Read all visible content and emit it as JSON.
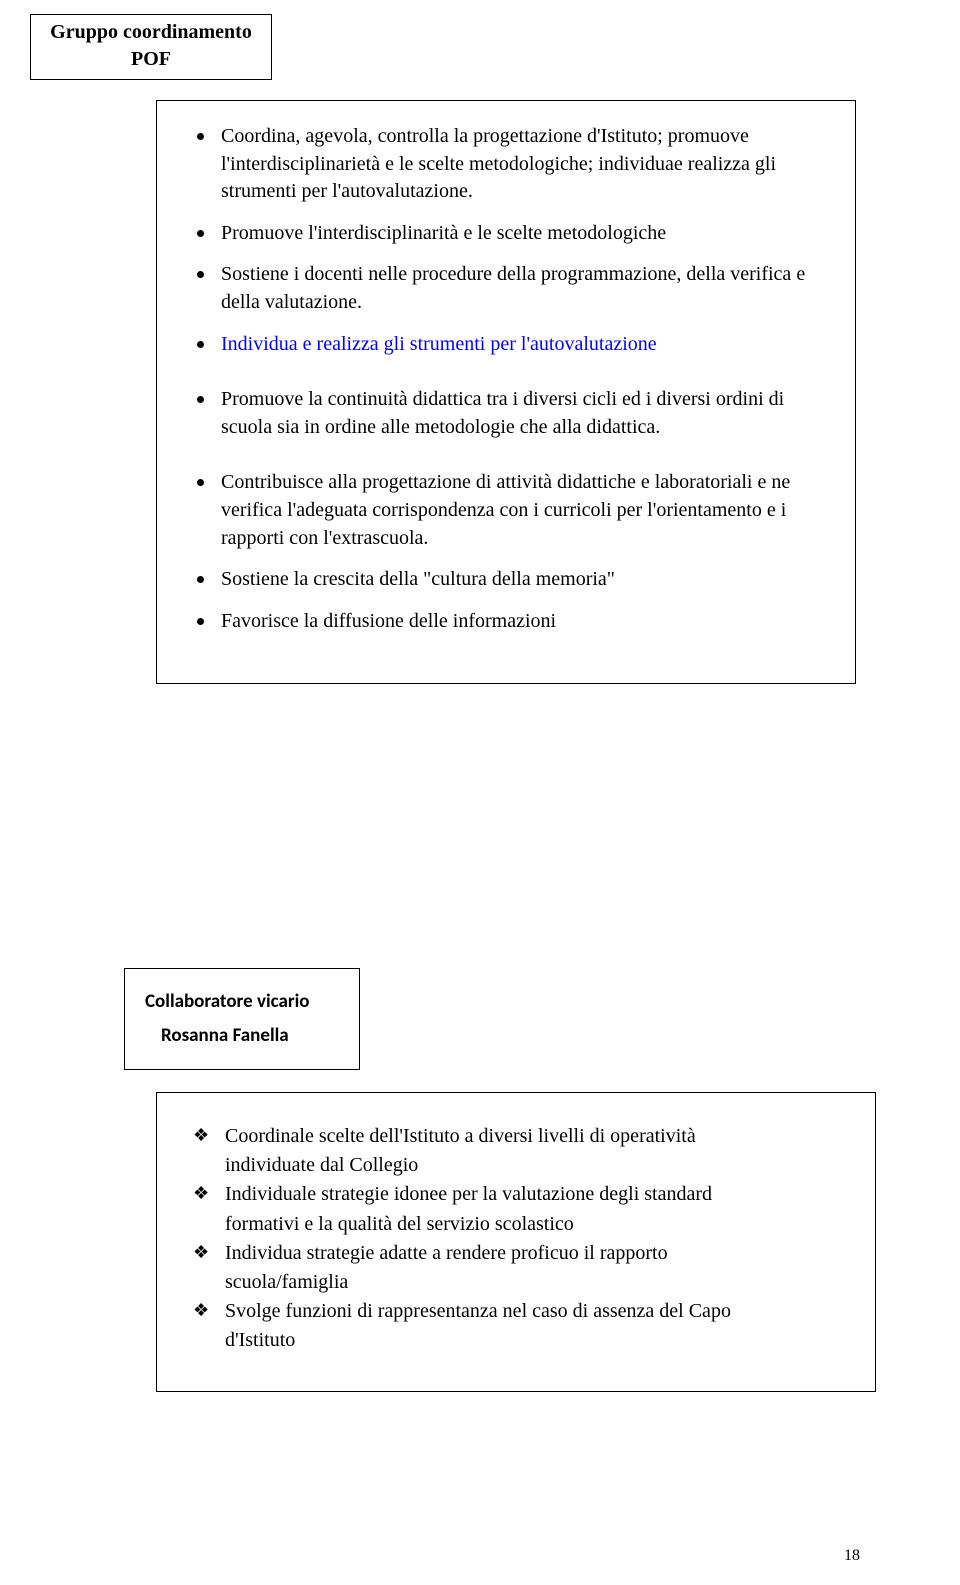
{
  "label1_line1": "Gruppo coordinamento",
  "label1_line2": "POF",
  "box1": {
    "b0": "Coordina, agevola, controlla la progettazione d'Istituto; promuove l'interdisciplinarietà e le scelte metodologiche; individuae realizza gli strumenti per l'autovalutazione.",
    "b1": "Promuove l'interdisciplinarità e le scelte metodologiche",
    "b2": "Sostiene i docenti nelle procedure della programmazione, della verifica e della valutazione.",
    "b3": "Individua e realizza gli strumenti per l'autovalutazione",
    "b4": "Promuove la continuità didattica tra i diversi cicli ed i diversi ordini di scuola sia in ordine alle metodologie che alla didattica.",
    "b5": "Contribuisce alla progettazione di attività didattiche e laboratoriali e  ne verifica l'adeguata corrispondenza con i curricoli per l'orientamento e i rapporti con l'extrascuola.",
    "b6": "Sostiene la crescita della \"cultura della memoria\"",
    "b7": "Favorisce la diffusione delle informazioni"
  },
  "label2_line1": "Collaboratore vicario",
  "label2_line2": "Rosanna Fanella",
  "box2": {
    "d0a": "Coordinale scelte dell'Istituto a diversi livelli di operatività",
    "d0b": "individuate dal  Collegio",
    "d1a": "Individuale strategie idonee per la valutazione degli standard",
    "d1b": "formativi e la qualità del servizio scolastico",
    "d2a": "Individua strategie adatte a rendere proficuo il rapporto",
    "d2b": "scuola/famiglia",
    "d3a": "Svolge funzioni di rappresentanza nel caso di assenza del Capo",
    "d3b": "d'Istituto"
  },
  "page_number": "18",
  "colors": {
    "text": "#000000",
    "link_blue": "#0000ff",
    "border": "#000000",
    "background": "#ffffff"
  }
}
